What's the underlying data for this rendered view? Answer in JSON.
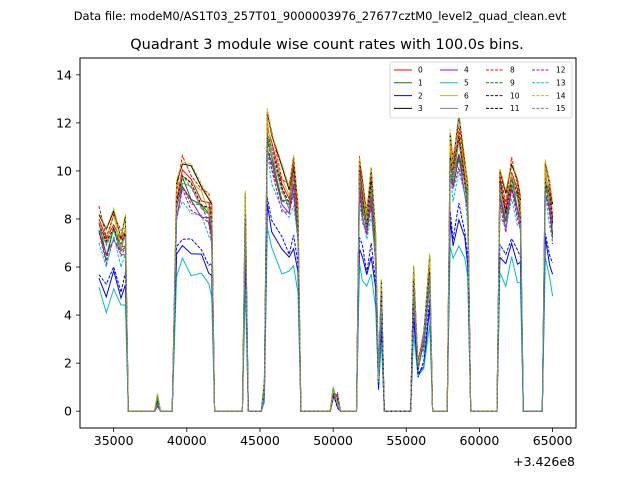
{
  "suptitle": "Data file: modeM0/AS1T03_257T01_9000003976_27677cztM0_level2_quad_clean.evt",
  "chart_data": {
    "type": "line",
    "title": "Quadrant 3 module wise count rates with 100.0s bins.",
    "xlabel": "",
    "ylabel": "",
    "x_offset_label": "+3.426e8",
    "xlim": [
      32700,
      66600
    ],
    "ylim": [
      -0.7,
      14.7
    ],
    "xticks": [
      35000,
      40000,
      45000,
      50000,
      55000,
      60000,
      65000
    ],
    "xtick_labels": [
      "35000",
      "40000",
      "45000",
      "50000",
      "55000",
      "60000",
      "65000"
    ],
    "yticks": [
      0,
      2,
      4,
      6,
      8,
      10,
      12,
      14
    ],
    "ytick_labels": [
      "0",
      "2",
      "4",
      "6",
      "8",
      "10",
      "12",
      "14"
    ],
    "legend_position": "top-right",
    "legend_columns": 4,
    "series_profile": {
      "x": [
        34000,
        34500,
        35000,
        35500,
        35800,
        36000,
        37800,
        38000,
        38200,
        39000,
        39300,
        39700,
        40300,
        41000,
        41500,
        41700,
        41900,
        43800,
        44000,
        44200,
        44500,
        44900,
        45100,
        45300,
        45500,
        45800,
        46500,
        47000,
        47300,
        47600,
        47800,
        49800,
        50000,
        50300,
        50500,
        51600,
        51800,
        52000,
        52300,
        52600,
        52900,
        53100,
        53300,
        53500,
        55300,
        55500,
        55800,
        56200,
        56600,
        56800,
        57800,
        58000,
        58200,
        58600,
        59000,
        59200,
        59400,
        61200,
        61400,
        61800,
        62200,
        62600,
        62800,
        63000,
        64300,
        64500,
        64800,
        65000
      ],
      "y": [
        8.0,
        7.0,
        8.0,
        7.0,
        7.5,
        0.0,
        0.0,
        0.5,
        0.0,
        0.0,
        9.0,
        10.0,
        9.5,
        9.0,
        8.5,
        8.0,
        0.0,
        0.0,
        8.5,
        0.0,
        0.0,
        0.0,
        0.0,
        1.0,
        12.0,
        11.0,
        9.5,
        9.0,
        10.0,
        8.0,
        0.0,
        0.0,
        0.8,
        0.5,
        0.0,
        0.0,
        10.0,
        9.0,
        8.0,
        9.5,
        7.0,
        1.5,
        5.0,
        0.0,
        0.0,
        5.5,
        2.0,
        3.0,
        6.0,
        0.0,
        0.0,
        11.0,
        10.0,
        11.5,
        10.0,
        9.0,
        0.0,
        0.0,
        9.5,
        8.5,
        10.0,
        9.0,
        8.5,
        0.0,
        0.0,
        10.0,
        9.0,
        8.0
      ]
    },
    "series": [
      {
        "name": "0",
        "color": "#ff0000",
        "style": "solid",
        "scale": 1.0
      },
      {
        "name": "1",
        "color": "#008000",
        "style": "solid",
        "scale": 0.95
      },
      {
        "name": "2",
        "color": "#0000ff",
        "style": "solid",
        "scale": 0.7
      },
      {
        "name": "3",
        "color": "#000000",
        "style": "solid",
        "scale": 1.05
      },
      {
        "name": "4",
        "color": "#bf00bf",
        "style": "solid",
        "scale": 0.92
      },
      {
        "name": "5",
        "color": "#00bfbf",
        "style": "solid",
        "scale": 0.62
      },
      {
        "name": "6",
        "color": "#bfbf00",
        "style": "solid",
        "scale": 1.0
      },
      {
        "name": "7",
        "color": "#808080",
        "style": "solid",
        "scale": 0.96
      },
      {
        "name": "8",
        "color": "#ff0000",
        "style": "dashed",
        "scale": 1.04
      },
      {
        "name": "9",
        "color": "#008000",
        "style": "dashed",
        "scale": 0.93
      },
      {
        "name": "10",
        "color": "#0000ff",
        "style": "dashed",
        "scale": 0.74
      },
      {
        "name": "11",
        "color": "#000000",
        "style": "dashed",
        "scale": 0.98
      },
      {
        "name": "12",
        "color": "#bf00bf",
        "style": "dashed",
        "scale": 0.9
      },
      {
        "name": "13",
        "color": "#00bfbf",
        "style": "dashed",
        "scale": 0.88
      },
      {
        "name": "14",
        "color": "#bfbf00",
        "style": "dashed",
        "scale": 1.06
      },
      {
        "name": "15",
        "color": "#808080",
        "style": "dashed",
        "scale": 0.97
      }
    ]
  }
}
